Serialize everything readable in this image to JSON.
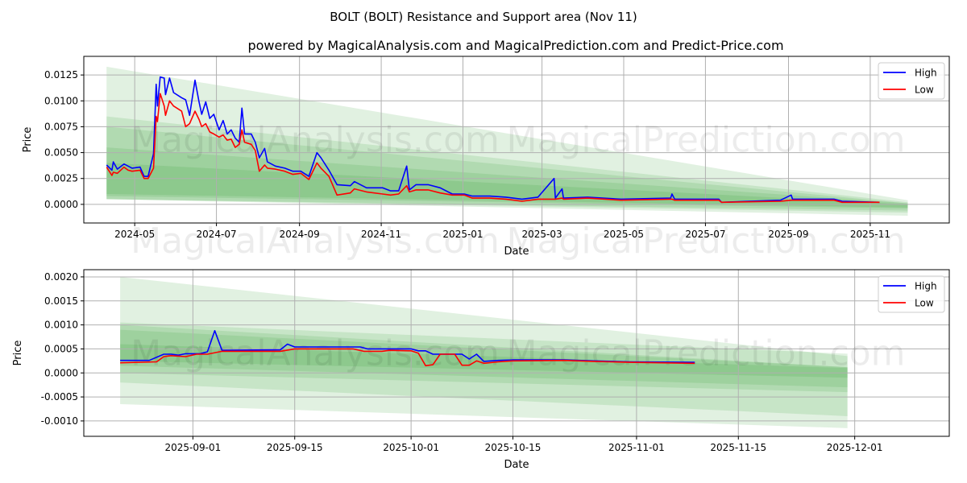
{
  "title": "BOLT (BOLT) Resistance and Support area (Nov 11)",
  "subtitle": "powered by MagicalAnalysis.com and MagicalPrediction.com and Predict-Price.com",
  "watermarks": [
    "MagicalAnalysis.com",
    "MagicalPrediction.com"
  ],
  "colors": {
    "high": "#0000ff",
    "low": "#ff0000",
    "band": "#2e9a2e"
  },
  "chart_data": [
    {
      "type": "line",
      "xlabel": "Date",
      "ylabel": "Price",
      "x_unit": "days since 2024-04-01",
      "x_origin": "2024-04-01",
      "xlim_days": [
        -8,
        638
      ],
      "ylim": [
        -0.0018,
        0.0143
      ],
      "grid": true,
      "legend": {
        "placement": "top-right",
        "entries": [
          "High",
          "Low"
        ]
      },
      "yticks": [
        "0.0125",
        "0.0100",
        "0.0075",
        "0.0050",
        "0.0025",
        "0.0000"
      ],
      "xticks": [
        {
          "date": "2024-05-01",
          "label": "2024-05"
        },
        {
          "date": "2024-07-01",
          "label": "2024-07"
        },
        {
          "date": "2024-09-01",
          "label": "2024-09"
        },
        {
          "date": "2024-11-01",
          "label": "2024-11"
        },
        {
          "date": "2025-01-01",
          "label": "2025-01"
        },
        {
          "date": "2025-03-01",
          "label": "2025-03"
        },
        {
          "date": "2025-05-01",
          "label": "2025-05"
        },
        {
          "date": "2025-07-01",
          "label": "2025-07"
        },
        {
          "date": "2025-09-01",
          "label": "2025-09"
        },
        {
          "date": "2025-11-01",
          "label": "2025-11"
        }
      ],
      "bands": {
        "x_range_days": [
          9,
          607
        ],
        "items": [
          {
            "start": [
              0.0005,
              0.0133
            ],
            "end": [
              -0.0011,
              0.0004
            ]
          },
          {
            "start": [
              0.0005,
              0.0085
            ],
            "end": [
              -0.0008,
              0.0002
            ]
          },
          {
            "start": [
              0.0005,
              0.0075
            ],
            "end": [
              -0.0006,
              0.0001
            ]
          },
          {
            "start": [
              0.0008,
              0.0055
            ],
            "end": [
              -0.0004,
              0.0001
            ]
          },
          {
            "start": [
              0.001,
              0.004
            ],
            "end": [
              -0.0003,
              0.0
            ]
          }
        ]
      },
      "series": [
        {
          "name": "High",
          "x": [
            9,
            13,
            14,
            17,
            22,
            25,
            28,
            34,
            37,
            40,
            44,
            46,
            47,
            49,
            52,
            53,
            56,
            59,
            65,
            68,
            71,
            75,
            78,
            80,
            83,
            86,
            89,
            93,
            96,
            99,
            102,
            105,
            108,
            110,
            112,
            117,
            120,
            123,
            127,
            129,
            135,
            142,
            148,
            154,
            160,
            166,
            169,
            175,
            181,
            191,
            194,
            203,
            215,
            221,
            227,
            233,
            235,
            240,
            249,
            258,
            267,
            276,
            282,
            295,
            307,
            319,
            331,
            343,
            344,
            349,
            350,
            368,
            393,
            430,
            431,
            433,
            466,
            468,
            512,
            520,
            521,
            552,
            558,
            586
          ],
          "y": [
            0.0038,
            0.0033,
            0.0041,
            0.0034,
            0.0039,
            0.0037,
            0.0035,
            0.0036,
            0.0027,
            0.0027,
            0.0049,
            0.0116,
            0.0095,
            0.0123,
            0.0122,
            0.0106,
            0.0122,
            0.0108,
            0.0103,
            0.0101,
            0.0086,
            0.012,
            0.0099,
            0.0087,
            0.0099,
            0.0083,
            0.0087,
            0.0072,
            0.0081,
            0.0068,
            0.0072,
            0.0064,
            0.006,
            0.0093,
            0.0068,
            0.0068,
            0.006,
            0.0045,
            0.0054,
            0.0041,
            0.0037,
            0.0035,
            0.0032,
            0.0032,
            0.0027,
            0.005,
            0.0045,
            0.0033,
            0.0019,
            0.0018,
            0.0022,
            0.0016,
            0.0016,
            0.0013,
            0.0013,
            0.0037,
            0.0014,
            0.0019,
            0.0019,
            0.0016,
            0.001,
            0.001,
            0.0008,
            0.0008,
            0.0007,
            0.0005,
            0.0007,
            0.0025,
            0.0006,
            0.0015,
            0.0006,
            0.0007,
            0.0005,
            0.0006,
            0.001,
            0.0005,
            0.0005,
            0.0002,
            0.0004,
            0.0009,
            0.0005,
            0.0005,
            0.0003,
            0.0002
          ]
        },
        {
          "name": "Low",
          "x": [
            9,
            13,
            14,
            17,
            22,
            25,
            28,
            34,
            37,
            40,
            44,
            46,
            47,
            49,
            52,
            53,
            56,
            59,
            65,
            68,
            71,
            75,
            78,
            80,
            83,
            86,
            89,
            93,
            96,
            99,
            102,
            105,
            108,
            110,
            112,
            117,
            120,
            123,
            127,
            129,
            135,
            142,
            148,
            154,
            160,
            166,
            169,
            175,
            181,
            191,
            194,
            203,
            215,
            221,
            227,
            233,
            235,
            240,
            249,
            258,
            267,
            276,
            282,
            295,
            307,
            319,
            331,
            343,
            344,
            349,
            350,
            368,
            393,
            430,
            431,
            433,
            466,
            468,
            512,
            520,
            521,
            552,
            558,
            586
          ],
          "y": [
            0.0036,
            0.0028,
            0.0031,
            0.003,
            0.0036,
            0.0033,
            0.0032,
            0.0033,
            0.0025,
            0.0025,
            0.0035,
            0.0085,
            0.008,
            0.0107,
            0.0095,
            0.0086,
            0.01,
            0.0095,
            0.009,
            0.0075,
            0.0078,
            0.009,
            0.0082,
            0.0075,
            0.0078,
            0.007,
            0.0068,
            0.0065,
            0.0067,
            0.0062,
            0.0063,
            0.0055,
            0.0058,
            0.0072,
            0.006,
            0.0058,
            0.0052,
            0.0032,
            0.0038,
            0.0035,
            0.0034,
            0.0032,
            0.0029,
            0.003,
            0.0024,
            0.004,
            0.0035,
            0.0027,
            0.0009,
            0.0011,
            0.0015,
            0.0012,
            0.001,
            0.0009,
            0.001,
            0.0018,
            0.0012,
            0.0014,
            0.0014,
            0.0011,
            0.0009,
            0.0009,
            0.0006,
            0.0006,
            0.0005,
            0.0003,
            0.0005,
            0.0005,
            0.0005,
            0.0006,
            0.0005,
            0.0006,
            0.0004,
            0.0005,
            0.0005,
            0.0004,
            0.0004,
            0.0002,
            0.0003,
            0.0004,
            0.0004,
            0.0004,
            0.0002,
            0.0002
          ]
        }
      ]
    },
    {
      "type": "line",
      "xlabel": "Date",
      "ylabel": "Price",
      "x_unit": "days since 2025-09-01",
      "x_origin": "2025-09-01",
      "xlim_days": [
        -15,
        104
      ],
      "ylim": [
        -0.00132,
        0.00215
      ],
      "grid": true,
      "legend": {
        "placement": "top-right",
        "entries": [
          "High",
          "Low"
        ]
      },
      "yticks": [
        "0.0020",
        "0.0015",
        "0.0010",
        "0.0005",
        "0.0000",
        "-0.0005",
        "-0.0010"
      ],
      "xticks": [
        {
          "date": "2025-09-01",
          "label": "2025-09-01"
        },
        {
          "date": "2025-09-15",
          "label": "2025-09-15"
        },
        {
          "date": "2025-10-01",
          "label": "2025-10-01"
        },
        {
          "date": "2025-10-15",
          "label": "2025-10-15"
        },
        {
          "date": "2025-11-01",
          "label": "2025-11-01"
        },
        {
          "date": "2025-11-15",
          "label": "2025-11-15"
        },
        {
          "date": "2025-12-01",
          "label": "2025-12-01"
        }
      ],
      "bands": {
        "x_range_days": [
          -10,
          90
        ],
        "items": [
          {
            "start": [
              -0.00065,
              0.002
            ],
            "end": [
              -0.00115,
              0.00035
            ]
          },
          {
            "start": [
              -0.0002,
              0.00105
            ],
            "end": [
              -0.0009,
              0.0004
            ]
          },
          {
            "start": [
              0.0,
              0.001
            ],
            "end": [
              -0.0004,
              0.00012
            ]
          },
          {
            "start": [
              0.00015,
              0.0009
            ],
            "end": [
              -0.0003,
              0.00012
            ]
          },
          {
            "start": [
              0.00025,
              0.0006
            ],
            "end": [
              -0.0001,
              0.0001
            ]
          }
        ]
      },
      "series": [
        {
          "name": "High",
          "x": [
            -10,
            -6,
            -4,
            -3,
            -2,
            -1,
            1,
            2,
            3,
            4,
            12,
            13,
            14,
            23,
            24,
            30,
            31,
            32,
            33,
            37,
            38,
            39,
            40,
            42,
            44,
            51,
            55,
            60,
            69
          ],
          "y": [
            0.00026,
            0.00026,
            0.00039,
            0.00039,
            0.00037,
            0.0004,
            0.0004,
            0.00044,
            0.00088,
            0.00047,
            0.00048,
            0.0006,
            0.00054,
            0.00054,
            0.0005,
            0.0005,
            0.00046,
            0.00046,
            0.00039,
            0.00039,
            0.00029,
            0.00039,
            0.00024,
            0.00026,
            0.00027,
            0.00027,
            0.00025,
            0.00023,
            0.00022
          ]
        },
        {
          "name": "Low",
          "x": [
            -10,
            -5,
            -4,
            -3,
            -1,
            0.5,
            2,
            4,
            12,
            14,
            22,
            23.5,
            26,
            27,
            30,
            31,
            32,
            33,
            34,
            36,
            37,
            38,
            39,
            40,
            42,
            44,
            51,
            55,
            60,
            69
          ],
          "y": [
            0.00021,
            0.00023,
            0.00034,
            0.00036,
            0.00034,
            0.00039,
            0.00039,
            0.00045,
            0.00045,
            0.0005,
            0.0005,
            0.00045,
            0.00045,
            0.00047,
            0.00046,
            0.00041,
            0.00015,
            0.00017,
            0.00039,
            0.00039,
            0.00016,
            0.00016,
            0.00025,
            0.0002,
            0.00023,
            0.00025,
            0.00026,
            0.00024,
            0.00022,
            0.0002
          ]
        }
      ]
    }
  ]
}
